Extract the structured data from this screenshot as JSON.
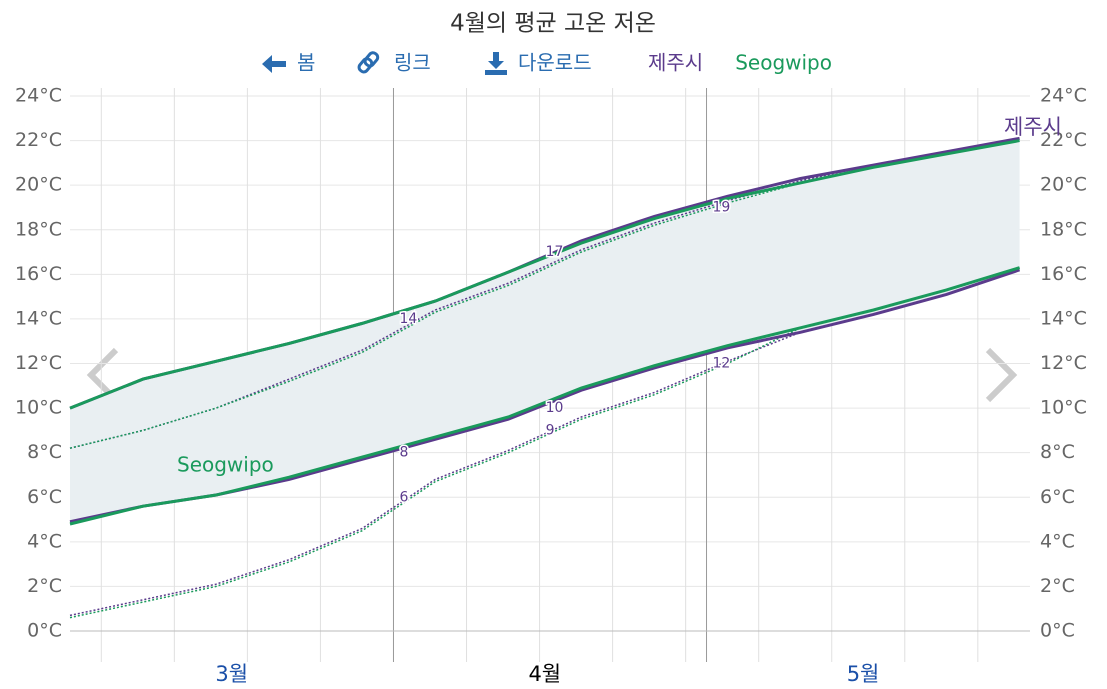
{
  "toolbar": [
    "봄",
    "링크",
    "다운로드"
  ],
  "chart_data": {
    "type": "line",
    "title": "4월의 평균 고온 저온",
    "x": [
      0,
      7,
      14,
      21,
      28,
      35,
      42,
      49,
      56,
      63,
      70,
      77,
      84,
      91
    ],
    "xlim": [
      0,
      92
    ],
    "xticks": [
      {
        "value": 15.5,
        "label": "3월"
      },
      {
        "value": 45.5,
        "label": "4월"
      },
      {
        "value": 76,
        "label": "5월"
      }
    ],
    "highlight_xtick": 1,
    "x_grid": [
      3,
      10,
      17,
      24,
      38,
      45,
      52,
      59,
      66,
      73,
      80,
      87
    ],
    "month_bounds": [
      31,
      61
    ],
    "ylim": [
      0,
      24
    ],
    "yticks": [
      {
        "value": 0,
        "label": "0°C"
      },
      {
        "value": 2,
        "label": "2°C"
      },
      {
        "value": 4,
        "label": "4°C"
      },
      {
        "value": 6,
        "label": "6°C"
      },
      {
        "value": 8,
        "label": "8°C"
      },
      {
        "value": 10,
        "label": "10°C"
      },
      {
        "value": 12,
        "label": "12°C"
      },
      {
        "value": 14,
        "label": "14°C"
      },
      {
        "value": 16,
        "label": "16°C"
      },
      {
        "value": 18,
        "label": "18°C"
      },
      {
        "value": 20,
        "label": "20°C"
      },
      {
        "value": 22,
        "label": "22°C"
      },
      {
        "value": 24,
        "label": "24°C"
      }
    ],
    "grid": true,
    "band_color": "#e9eff2",
    "series": [
      {
        "name": "제주시",
        "color": "#5b3b8c",
        "high": [
          10.0,
          11.3,
          12.1,
          12.9,
          13.8,
          14.8,
          16.1,
          17.5,
          18.6,
          19.5,
          20.3,
          20.9,
          21.5,
          22.1
        ],
        "low": [
          4.9,
          5.6,
          6.1,
          6.8,
          7.7,
          8.6,
          9.5,
          10.8,
          11.8,
          12.7,
          13.4,
          14.2,
          15.1,
          16.2
        ],
        "high_dotted": [
          8.2,
          9.0,
          10.0,
          11.3,
          12.6,
          14.4,
          15.6,
          17.1,
          18.3,
          19.3,
          20.2,
          20.9,
          21.5,
          22.1
        ],
        "low_dotted": [
          0.7,
          1.4,
          2.1,
          3.2,
          4.6,
          6.8,
          8.1,
          9.6,
          10.7,
          12.1,
          13.4,
          14.2,
          15.1,
          16.2
        ]
      },
      {
        "name": "Seogwipo",
        "color": "#1a9a5c",
        "high": [
          10.0,
          11.3,
          12.1,
          12.9,
          13.8,
          14.8,
          16.1,
          17.4,
          18.5,
          19.4,
          20.1,
          20.8,
          21.4,
          22.0
        ],
        "low": [
          4.8,
          5.6,
          6.1,
          6.9,
          7.8,
          8.7,
          9.6,
          10.9,
          11.9,
          12.8,
          13.6,
          14.4,
          15.3,
          16.3
        ],
        "high_dotted": [
          8.2,
          9.0,
          10.0,
          11.2,
          12.5,
          14.3,
          15.5,
          17.0,
          18.2,
          19.2,
          20.1,
          20.8,
          21.4,
          22.0
        ],
        "low_dotted": [
          0.6,
          1.3,
          2.0,
          3.1,
          4.5,
          6.7,
          8.0,
          9.5,
          10.6,
          12.0,
          13.6,
          14.4,
          15.3,
          16.3
        ]
      }
    ],
    "point_labels": [
      {
        "x": 31,
        "value": 14
      },
      {
        "x": 31,
        "value": 8
      },
      {
        "x": 31,
        "value": 6
      },
      {
        "x": 45,
        "value": 17
      },
      {
        "x": 45,
        "value": 10
      },
      {
        "x": 45,
        "value": 9
      },
      {
        "x": 61,
        "value": 19
      },
      {
        "x": 61,
        "value": 12
      }
    ]
  }
}
